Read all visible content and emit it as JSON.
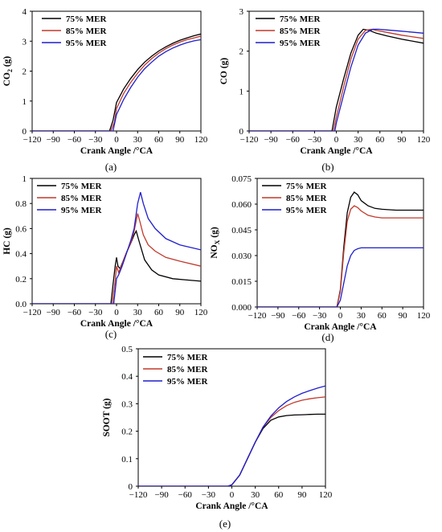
{
  "chart_data": [
    {
      "type": "line",
      "panel_label": "(a)",
      "xlabel": "Crank Angle /°CA",
      "ylabel": "CO",
      "ylabel_sub": "2",
      "ylabel_unit": " (g)",
      "xlim": [
        -120,
        120
      ],
      "ylim": [
        0,
        4
      ],
      "xticks": [
        "−120",
        "−90",
        "−60",
        "−30",
        "0",
        "30",
        "60",
        "90",
        "120"
      ],
      "yticks": [
        "0",
        "1",
        "2",
        "3",
        "4"
      ],
      "series": [
        {
          "name": "75% MER",
          "color": "#000000",
          "x": [
            -10,
            -5,
            0,
            10,
            20,
            30,
            40,
            50,
            60,
            70,
            80,
            90,
            100,
            110,
            120
          ],
          "y": [
            0,
            0.35,
            0.95,
            1.4,
            1.75,
            2.05,
            2.3,
            2.5,
            2.67,
            2.81,
            2.93,
            3.03,
            3.11,
            3.18,
            3.24
          ]
        },
        {
          "name": "85% MER",
          "color": "#c0392b",
          "x": [
            -8,
            -3,
            0,
            10,
            20,
            30,
            40,
            50,
            60,
            70,
            80,
            90,
            100,
            110,
            120
          ],
          "y": [
            0,
            0.3,
            0.75,
            1.25,
            1.62,
            1.93,
            2.2,
            2.42,
            2.6,
            2.75,
            2.87,
            2.97,
            3.05,
            3.11,
            3.17
          ]
        },
        {
          "name": "95% MER",
          "color": "#1f1fcc",
          "x": [
            -5,
            0,
            10,
            20,
            30,
            40,
            50,
            60,
            70,
            80,
            90,
            100,
            110,
            120
          ],
          "y": [
            0,
            0.55,
            1.05,
            1.45,
            1.8,
            2.08,
            2.3,
            2.5,
            2.65,
            2.77,
            2.87,
            2.95,
            3.01,
            3.05
          ]
        }
      ]
    },
    {
      "type": "line",
      "panel_label": "(b)",
      "xlabel": "Crank Angle /°CA",
      "ylabel": "CO",
      "ylabel_sub": "",
      "ylabel_unit": " (g)",
      "xlim": [
        -120,
        120
      ],
      "ylim": [
        0,
        3
      ],
      "xticks": [
        "−120",
        "−90",
        "−60",
        "−30",
        "0",
        "30",
        "60",
        "90",
        "120"
      ],
      "yticks": [
        "0",
        "1",
        "2",
        "3"
      ],
      "series": [
        {
          "name": "75% MER",
          "color": "#000000",
          "x": [
            -6,
            -3,
            0,
            10,
            20,
            30,
            37,
            45,
            55,
            70,
            90,
            120
          ],
          "y": [
            0,
            0.3,
            0.6,
            1.3,
            1.95,
            2.4,
            2.55,
            2.52,
            2.45,
            2.38,
            2.3,
            2.2
          ]
        },
        {
          "name": "85% MER",
          "color": "#c0392b",
          "x": [
            -4,
            0,
            10,
            20,
            30,
            40,
            48,
            55,
            70,
            90,
            120
          ],
          "y": [
            0,
            0.35,
            1.1,
            1.8,
            2.3,
            2.52,
            2.55,
            2.52,
            2.47,
            2.4,
            2.32
          ]
        },
        {
          "name": "95% MER",
          "color": "#1f1fcc",
          "x": [
            -2,
            0,
            10,
            20,
            30,
            40,
            50,
            58,
            70,
            90,
            120
          ],
          "y": [
            0,
            0.2,
            0.9,
            1.6,
            2.15,
            2.45,
            2.55,
            2.55,
            2.53,
            2.5,
            2.45
          ]
        }
      ]
    },
    {
      "type": "line",
      "panel_label": "(c)",
      "xlabel": "Crank Angle /°CA",
      "ylabel": "HC",
      "ylabel_sub": "",
      "ylabel_unit": " (g)",
      "xlim": [
        -120,
        120
      ],
      "ylim": [
        0,
        1
      ],
      "xticks": [
        "−120",
        "−90",
        "−60",
        "−30",
        "0",
        "30",
        "60",
        "90",
        "120"
      ],
      "yticks": [
        "0.0",
        "0.2",
        "0.4",
        "0.6",
        "0.8",
        "1"
      ],
      "series": [
        {
          "name": "75% MER",
          "color": "#000000",
          "x": [
            -8,
            -5,
            -2,
            0,
            2,
            5,
            10,
            15,
            20,
            25,
            28,
            32,
            40,
            50,
            60,
            80,
            100,
            120
          ],
          "y": [
            0,
            0.15,
            0.3,
            0.37,
            0.3,
            0.28,
            0.35,
            0.42,
            0.48,
            0.55,
            0.58,
            0.5,
            0.35,
            0.27,
            0.23,
            0.2,
            0.19,
            0.18
          ]
        },
        {
          "name": "85% MER",
          "color": "#c0392b",
          "x": [
            -6,
            -2,
            0,
            3,
            7,
            12,
            20,
            25,
            30,
            33,
            38,
            45,
            55,
            70,
            90,
            120
          ],
          "y": [
            0,
            0.18,
            0.3,
            0.25,
            0.3,
            0.38,
            0.48,
            0.58,
            0.72,
            0.66,
            0.55,
            0.47,
            0.42,
            0.37,
            0.34,
            0.3
          ]
        },
        {
          "name": "95% MER",
          "color": "#1f1fcc",
          "x": [
            -4,
            0,
            3,
            8,
            14,
            20,
            25,
            30,
            34,
            38,
            45,
            55,
            70,
            90,
            120
          ],
          "y": [
            0,
            0.2,
            0.23,
            0.3,
            0.4,
            0.5,
            0.6,
            0.8,
            0.89,
            0.8,
            0.68,
            0.6,
            0.52,
            0.47,
            0.43
          ]
        }
      ]
    },
    {
      "type": "line",
      "panel_label": "(d)",
      "xlabel": "Crank Angle /°CA",
      "ylabel": "NO",
      "ylabel_sub": "X",
      "ylabel_unit": " (g)",
      "xlim": [
        -120,
        120
      ],
      "ylim": [
        0,
        0.075
      ],
      "xticks": [
        "−120",
        "−90",
        "−60",
        "−30",
        "0",
        "30",
        "60",
        "90",
        "120"
      ],
      "yticks": [
        "0.000",
        "0.015",
        "0.030",
        "0.045",
        "0.060",
        "0.075"
      ],
      "series": [
        {
          "name": "75% MER",
          "color": "#000000",
          "x": [
            -5,
            0,
            5,
            10,
            15,
            20,
            25,
            30,
            40,
            50,
            60,
            80,
            100,
            120
          ],
          "y": [
            0,
            0.01,
            0.035,
            0.055,
            0.064,
            0.067,
            0.0655,
            0.062,
            0.059,
            0.0575,
            0.057,
            0.0565,
            0.0565,
            0.0565
          ]
        },
        {
          "name": "85% MER",
          "color": "#c0392b",
          "x": [
            -5,
            0,
            5,
            10,
            15,
            20,
            25,
            30,
            40,
            50,
            60,
            80,
            100,
            120
          ],
          "y": [
            0,
            0.009,
            0.032,
            0.05,
            0.057,
            0.059,
            0.058,
            0.056,
            0.0535,
            0.0525,
            0.052,
            0.052,
            0.052,
            0.052
          ]
        },
        {
          "name": "95% MER",
          "color": "#1f1fcc",
          "x": [
            -5,
            0,
            5,
            10,
            15,
            20,
            25,
            30,
            40,
            60,
            80,
            100,
            120
          ],
          "y": [
            0,
            0.004,
            0.014,
            0.024,
            0.03,
            0.033,
            0.034,
            0.0345,
            0.0345,
            0.0345,
            0.0345,
            0.0345,
            0.0345
          ]
        }
      ]
    },
    {
      "type": "line",
      "panel_label": "(e)",
      "xlabel": "Crank Angle /°CA",
      "ylabel": "SOOT",
      "ylabel_sub": "",
      "ylabel_unit": " (g)",
      "xlim": [
        -120,
        120
      ],
      "ylim": [
        0,
        0.5
      ],
      "xticks": [
        "−120",
        "−90",
        "−60",
        "−30",
        "0",
        "30",
        "60",
        "90",
        "120"
      ],
      "yticks": [
        "0",
        "0.1",
        "0.2",
        "0.3",
        "0.4",
        "0.5"
      ],
      "series": [
        {
          "name": "75% MER",
          "color": "#000000",
          "x": [
            -5,
            0,
            10,
            20,
            30,
            40,
            50,
            60,
            70,
            80,
            90,
            100,
            110,
            120
          ],
          "y": [
            0,
            0.005,
            0.04,
            0.1,
            0.16,
            0.21,
            0.24,
            0.252,
            0.257,
            0.259,
            0.26,
            0.261,
            0.262,
            0.262
          ]
        },
        {
          "name": "85% MER",
          "color": "#c0392b",
          "x": [
            -5,
            0,
            10,
            20,
            30,
            40,
            50,
            60,
            70,
            80,
            90,
            100,
            110,
            120
          ],
          "y": [
            0,
            0.005,
            0.04,
            0.1,
            0.16,
            0.215,
            0.25,
            0.275,
            0.293,
            0.305,
            0.313,
            0.318,
            0.322,
            0.325
          ]
        },
        {
          "name": "95% MER",
          "color": "#1f1fcc",
          "x": [
            -5,
            0,
            10,
            20,
            30,
            40,
            50,
            60,
            70,
            80,
            90,
            100,
            110,
            120
          ],
          "y": [
            0,
            0.005,
            0.04,
            0.1,
            0.16,
            0.215,
            0.255,
            0.285,
            0.308,
            0.325,
            0.338,
            0.348,
            0.357,
            0.365
          ]
        }
      ]
    }
  ]
}
